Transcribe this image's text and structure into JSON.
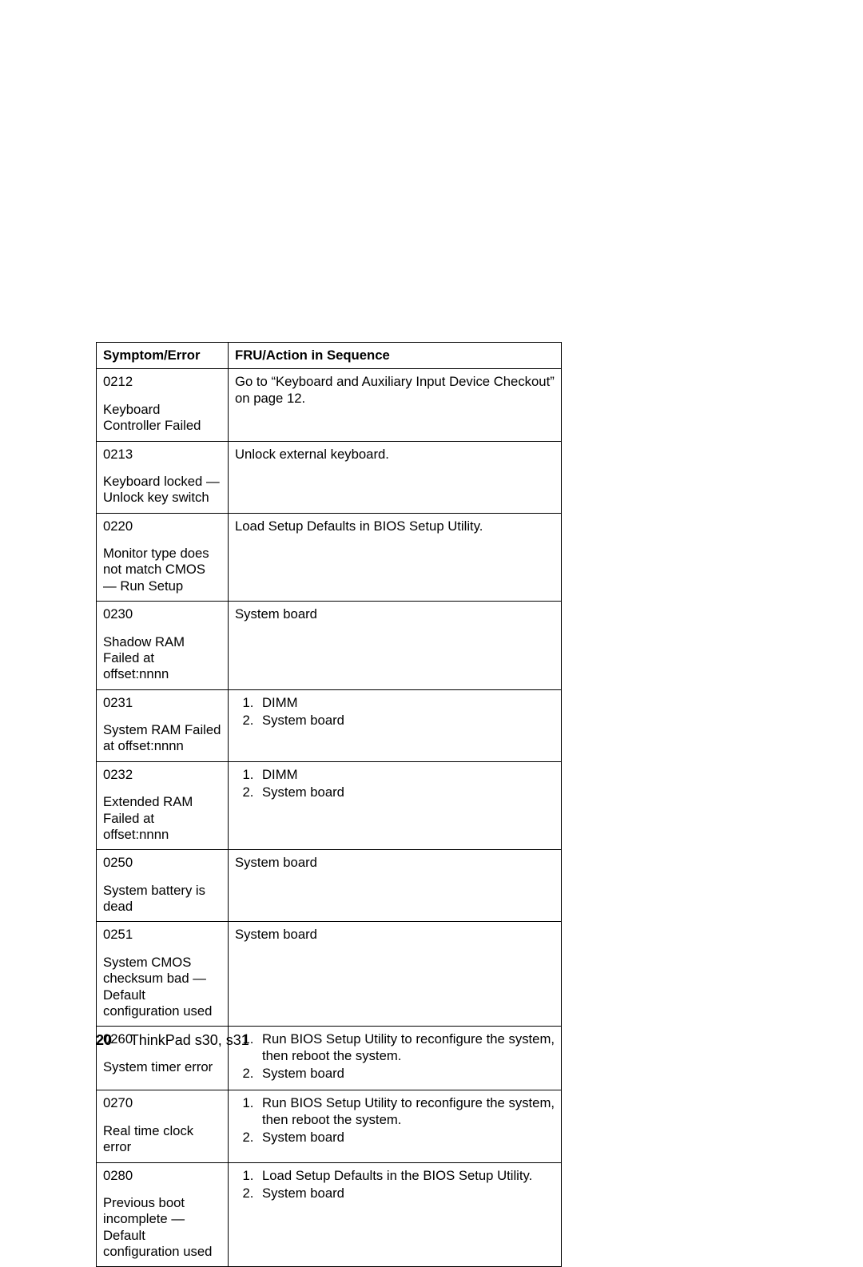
{
  "table": {
    "headers": {
      "symptom": "Symptom/Error",
      "action": "FRU/Action in Sequence"
    },
    "rows": [
      {
        "code": "0212",
        "desc": "Keyboard Controller Failed",
        "action_text": "Go to “Keyboard and Auxiliary Input Device Checkout” on page 12."
      },
      {
        "code": "0213",
        "desc": "Keyboard locked — Unlock key switch",
        "action_text": "Unlock external keyboard."
      },
      {
        "code": "0220",
        "desc": "Monitor type does not match CMOS — Run Setup",
        "action_text": "Load Setup Defaults in BIOS Setup Utility."
      },
      {
        "code": "0230",
        "desc": "Shadow RAM Failed at offset:nnnn",
        "action_text": "System board"
      },
      {
        "code": "0231",
        "desc": "System RAM Failed at offset:nnnn",
        "action_list": [
          "DIMM",
          "System board"
        ]
      },
      {
        "code": "0232",
        "desc": "Extended RAM Failed at offset:nnnn",
        "action_list": [
          "DIMM",
          "System board"
        ]
      },
      {
        "code": "0250",
        "desc": "System battery is dead",
        "action_text": "System board"
      },
      {
        "code": "0251",
        "desc": "System CMOS checksum bad — Default configuration used",
        "action_text": "System board"
      },
      {
        "code": "0260",
        "desc": "System timer error",
        "action_list": [
          "Run BIOS Setup Utility to reconfigure the system, then reboot the system.",
          "System board"
        ],
        "justify": true
      },
      {
        "code": "0270",
        "desc": "Real time clock error",
        "action_list": [
          "Run BIOS Setup Utility to reconfigure the system, then reboot the system.",
          "System board"
        ],
        "justify": true
      },
      {
        "code": "0280",
        "desc": "Previous boot incomplete — Default configuration used",
        "action_list": [
          "Load Setup Defaults in the BIOS Setup Utility.",
          "System board"
        ],
        "justify": true
      }
    ]
  },
  "footer": {
    "page_number": "20",
    "title": "ThinkPad s30, s31"
  }
}
